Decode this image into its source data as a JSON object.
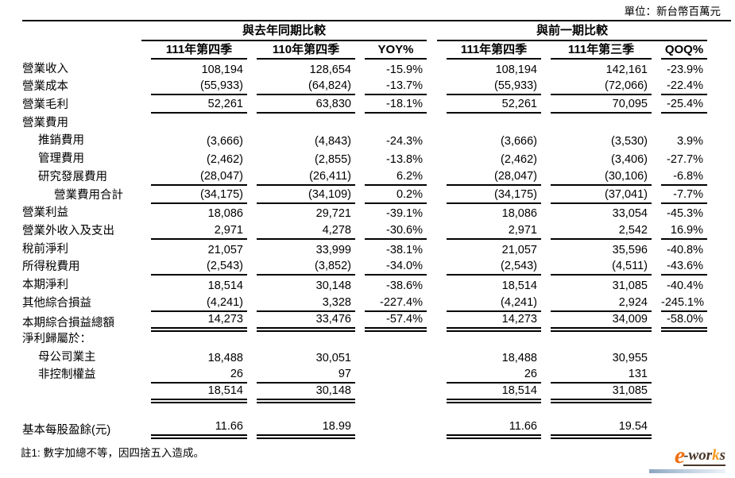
{
  "unit_label": "單位：新台幣百萬元",
  "table": {
    "group_headers": [
      "與去年同期比較",
      "與前一期比較"
    ],
    "column_headers": [
      "111年第四季",
      "110年第四季",
      "YOY%",
      "111年第四季",
      "111年第三季",
      "QOQ%"
    ],
    "rows": [
      {
        "label": "營業收入",
        "indent": 0,
        "values": [
          "108,194",
          "128,654",
          "-15.9%",
          "108,194",
          "142,161",
          "-23.9%"
        ],
        "line": "",
        "pct": true
      },
      {
        "label": "營業成本",
        "indent": 0,
        "values": [
          "(55,933)",
          "(64,824)",
          "-13.7%",
          "(55,933)",
          "(72,066)",
          "-22.4%"
        ],
        "line": "u",
        "pct": true
      },
      {
        "label": "營業毛利",
        "indent": 0,
        "values": [
          "52,261",
          "63,830",
          "-18.1%",
          "52,261",
          "70,095",
          "-25.4%"
        ],
        "line": "u",
        "pct": true
      },
      {
        "label": "營業費用",
        "indent": 0,
        "values": [
          "",
          "",
          "",
          "",
          "",
          ""
        ],
        "line": "",
        "pct": true
      },
      {
        "label": "推銷費用",
        "indent": 1,
        "values": [
          "(3,666)",
          "(4,843)",
          "-24.3%",
          "(3,666)",
          "(3,530)",
          "3.9%"
        ],
        "line": "",
        "pct": true
      },
      {
        "label": "管理費用",
        "indent": 1,
        "values": [
          "(2,462)",
          "(2,855)",
          "-13.8%",
          "(2,462)",
          "(3,406)",
          "-27.7%"
        ],
        "line": "",
        "pct": true
      },
      {
        "label": "研究發展費用",
        "indent": 1,
        "values": [
          "(28,047)",
          "(26,411)",
          "6.2%",
          "(28,047)",
          "(30,106)",
          "-6.8%"
        ],
        "line": "u",
        "pct": true
      },
      {
        "label": "營業費用合計",
        "indent": 2,
        "values": [
          "(34,175)",
          "(34,109)",
          "0.2%",
          "(34,175)",
          "(37,041)",
          "-7.7%"
        ],
        "line": "u",
        "pct": true
      },
      {
        "label": "營業利益",
        "indent": 0,
        "values": [
          "18,086",
          "29,721",
          "-39.1%",
          "18,086",
          "33,054",
          "-45.3%"
        ],
        "line": "",
        "pct": true
      },
      {
        "label": "營業外收入及支出",
        "indent": 0,
        "values": [
          "2,971",
          "4,278",
          "-30.6%",
          "2,971",
          "2,542",
          "16.9%"
        ],
        "line": "u",
        "pct": true
      },
      {
        "label": "稅前淨利",
        "indent": 0,
        "values": [
          "21,057",
          "33,999",
          "-38.1%",
          "21,057",
          "35,596",
          "-40.8%"
        ],
        "line": "",
        "pct": true
      },
      {
        "label": "所得稅費用",
        "indent": 0,
        "values": [
          "(2,543)",
          "(3,852)",
          "-34.0%",
          "(2,543)",
          "(4,511)",
          "-43.6%"
        ],
        "line": "u",
        "pct": true
      },
      {
        "label": "本期淨利",
        "indent": 0,
        "values": [
          "18,514",
          "30,148",
          "-38.6%",
          "18,514",
          "31,085",
          "-40.4%"
        ],
        "line": "",
        "pct": true
      },
      {
        "label": "其他綜合損益",
        "indent": 0,
        "values": [
          "(4,241)",
          "3,328",
          "-227.4%",
          "(4,241)",
          "2,924",
          "-245.1%"
        ],
        "line": "u",
        "pct": true
      },
      {
        "label": "本期綜合損益總額",
        "indent": 0,
        "values": [
          "14,273",
          "33,476",
          "-57.4%",
          "14,273",
          "34,009",
          "-58.0%"
        ],
        "line": "uu",
        "pct": true
      },
      {
        "label": "淨利歸屬於：",
        "indent": 0,
        "values": [
          "",
          "",
          "",
          "",
          "",
          ""
        ],
        "line": "",
        "pct": true
      },
      {
        "label": "母公司業主",
        "indent": 1,
        "values": [
          "18,488",
          "30,051",
          "",
          "18,488",
          "30,955",
          ""
        ],
        "line": "",
        "pct": true
      },
      {
        "label": "非控制權益",
        "indent": 1,
        "values": [
          "26",
          "97",
          "",
          "26",
          "131",
          ""
        ],
        "line": "u",
        "pct": false
      },
      {
        "label": "",
        "indent": 0,
        "values": [
          "18,514",
          "30,148",
          "",
          "18,514",
          "31,085",
          ""
        ],
        "line": "uu",
        "pct": false
      },
      {
        "spacer": true
      },
      {
        "label": "基本每股盈餘(元)",
        "indent": 0,
        "values": [
          "11.66",
          "18.99",
          "",
          "11.66",
          "19.54",
          ""
        ],
        "line": "uu",
        "pct": false
      }
    ]
  },
  "note": "註1: 數字加總不等，因四捨五入造成。",
  "logo": {
    "e": "e",
    "word_prefix": "-wor",
    "k": "k",
    "s": "s"
  },
  "colors": {
    "text": "#000000",
    "logo_orange": "#ed7010",
    "logo_k_orange": "#f59a1d",
    "logo_dark": "#4a372a",
    "logo_bar_left": "#8ba6c1",
    "logo_bar_right": "#eef3f8"
  }
}
